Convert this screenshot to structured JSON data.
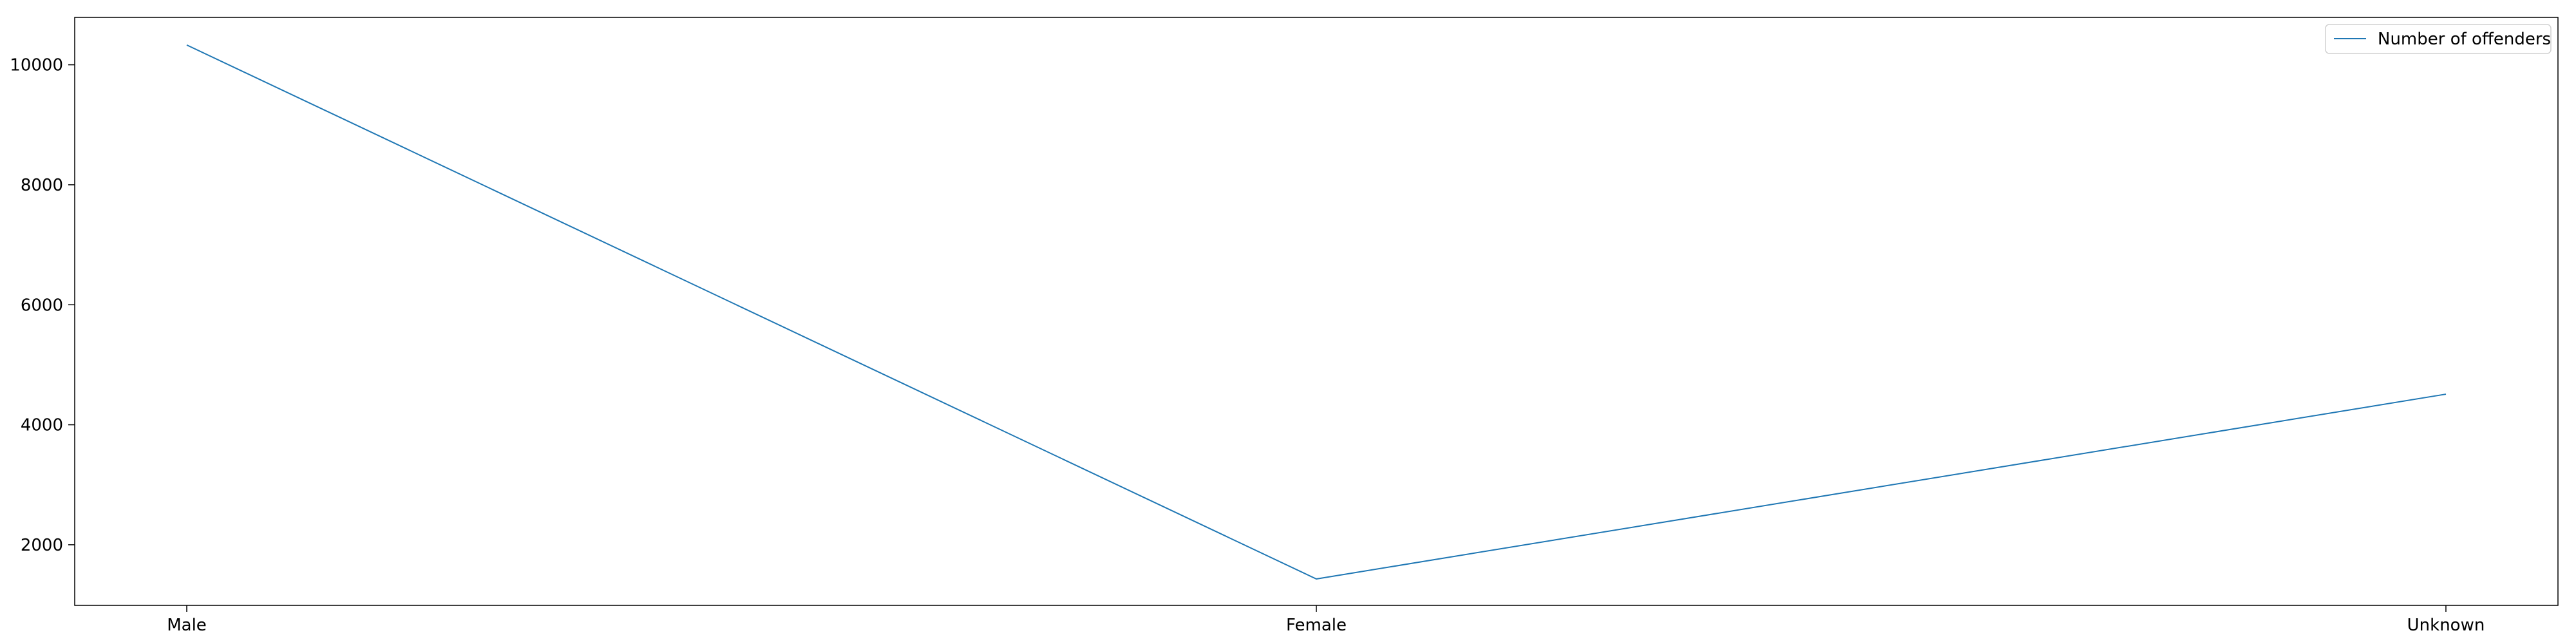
{
  "chart_data": {
    "type": "line",
    "categories": [
      "Male",
      "Female",
      "Unknown"
    ],
    "series": [
      {
        "name": "Number of offenders",
        "values": [
          10330,
          1430,
          4510
        ],
        "color": "#1f77b4"
      }
    ],
    "ylim": [
      990,
      10790
    ],
    "yticks": [
      2000,
      4000,
      6000,
      8000,
      10000
    ],
    "legend_position": "top-right",
    "grid": false
  }
}
